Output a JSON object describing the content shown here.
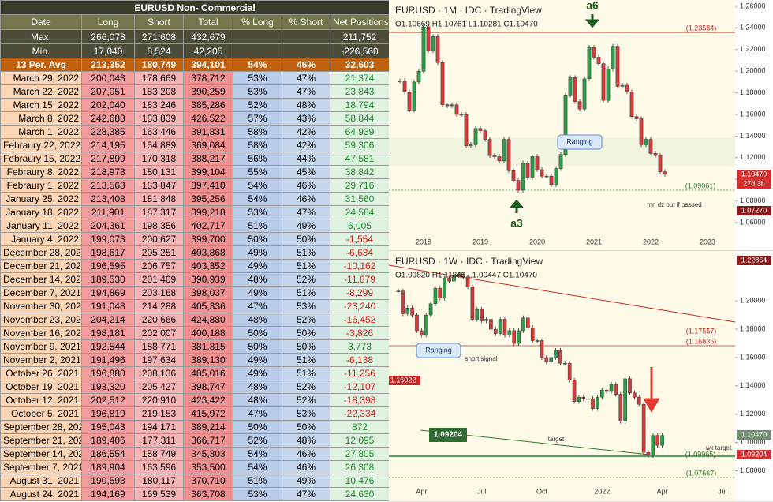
{
  "table": {
    "title": "EURUSD Non- Commercial",
    "header": [
      "Date",
      "Long",
      "Short",
      "Total",
      "% Long",
      "% Short",
      "Net Positions"
    ],
    "max": {
      "label": "Max.",
      "long": "266,078",
      "short": "271,608",
      "total": "432,679",
      "net": "211,752"
    },
    "min": {
      "label": "Min.",
      "long": "17,040",
      "short": "8,524",
      "total": "42,205",
      "net": "-226,560"
    },
    "avg": [
      "13 Per. Avg",
      "213,352",
      "180,749",
      "394,101",
      "54%",
      "46%",
      "32,603"
    ],
    "rows": [
      [
        "March 29, 2022",
        "200,043",
        "178,669",
        "378,712",
        "53%",
        "47%",
        "21,374"
      ],
      [
        "March 22, 2022",
        "207,051",
        "183,208",
        "390,259",
        "53%",
        "47%",
        "23,843"
      ],
      [
        "March 15, 2022",
        "202,040",
        "183,246",
        "385,286",
        "52%",
        "48%",
        "18,794"
      ],
      [
        "March 8, 2022",
        "242,683",
        "183,839",
        "426,522",
        "57%",
        "43%",
        "58,844"
      ],
      [
        "March 1, 2022",
        "228,385",
        "163,446",
        "391,831",
        "58%",
        "42%",
        "64,939"
      ],
      [
        "Febraury 22, 2022",
        "214,195",
        "154,889",
        "369,084",
        "58%",
        "42%",
        "59,306"
      ],
      [
        "Febraury 15, 2022",
        "217,899",
        "170,318",
        "388,217",
        "56%",
        "44%",
        "47,581"
      ],
      [
        "Febraury 8, 2022",
        "218,973",
        "180,131",
        "399,104",
        "55%",
        "45%",
        "38,842"
      ],
      [
        "Febraury 1, 2022",
        "213,563",
        "183,847",
        "397,410",
        "54%",
        "46%",
        "29,716"
      ],
      [
        "January 25, 2022",
        "213,408",
        "181,848",
        "395,256",
        "54%",
        "46%",
        "31,560"
      ],
      [
        "January 18, 2022",
        "211,901",
        "187,317",
        "399,218",
        "53%",
        "47%",
        "24,584"
      ],
      [
        "January 11, 2022",
        "204,361",
        "198,356",
        "402,717",
        "51%",
        "49%",
        "6,005"
      ],
      [
        "January 4, 2022",
        "199,073",
        "200,627",
        "399,700",
        "50%",
        "50%",
        "-1,554"
      ],
      [
        "December 28, 2021",
        "198,617",
        "205,251",
        "403,868",
        "49%",
        "51%",
        "-6,634"
      ],
      [
        "December 21, 2021",
        "196,595",
        "206,757",
        "403,352",
        "49%",
        "51%",
        "-10,162"
      ],
      [
        "December 14, 2021",
        "189,530",
        "201,409",
        "390,939",
        "48%",
        "52%",
        "-11,879"
      ],
      [
        "December 7, 2021",
        "194,869",
        "203,168",
        "398,037",
        "49%",
        "51%",
        "-8,299"
      ],
      [
        "November 30, 2021",
        "191,048",
        "214,288",
        "405,336",
        "47%",
        "53%",
        "-23,240"
      ],
      [
        "November 23, 2021",
        "204,214",
        "220,666",
        "424,880",
        "48%",
        "52%",
        "-16,452"
      ],
      [
        "November 16, 2021",
        "198,181",
        "202,007",
        "400,188",
        "50%",
        "50%",
        "-3,826"
      ],
      [
        "November 9, 2021",
        "192,544",
        "188,771",
        "381,315",
        "50%",
        "50%",
        "3,773"
      ],
      [
        "November 2, 2021",
        "191,496",
        "197,634",
        "389,130",
        "49%",
        "51%",
        "-6,138"
      ],
      [
        "October 26, 2021",
        "196,880",
        "208,136",
        "405,016",
        "49%",
        "51%",
        "-11,256"
      ],
      [
        "October 19, 2021",
        "193,320",
        "205,427",
        "398,747",
        "48%",
        "52%",
        "-12,107"
      ],
      [
        "October 12, 2021",
        "202,512",
        "220,910",
        "423,422",
        "48%",
        "52%",
        "-18,398"
      ],
      [
        "October 5, 2021",
        "196,819",
        "219,153",
        "415,972",
        "47%",
        "53%",
        "-22,334"
      ],
      [
        "September 28, 2021",
        "195,043",
        "194,171",
        "389,214",
        "50%",
        "50%",
        "872"
      ],
      [
        "September 21, 2021",
        "189,406",
        "177,311",
        "366,717",
        "52%",
        "48%",
        "12,095"
      ],
      [
        "September 14, 2021",
        "186,554",
        "158,749",
        "345,303",
        "54%",
        "46%",
        "27,805"
      ],
      [
        "September 7, 2021",
        "189,904",
        "163,596",
        "353,500",
        "54%",
        "46%",
        "26,308"
      ],
      [
        "August 31, 2021",
        "190,593",
        "180,117",
        "370,710",
        "51%",
        "49%",
        "10,476"
      ],
      [
        "August 24, 2021",
        "194,169",
        "169,539",
        "363,708",
        "53%",
        "47%",
        "24,630"
      ]
    ]
  },
  "charts": [
    {
      "type": "candlestick",
      "title": "EURUSD · 1M · IDC · TradingView",
      "ohlc": "O1.10669 H1.10761 L1.10281 C1.10470",
      "values": [
        1.191,
        1.181,
        1.164,
        1.19,
        1.2,
        1.241,
        1.219,
        1.232,
        1.208,
        1.169,
        1.168,
        1.169,
        1.16,
        1.16,
        1.131,
        1.132,
        1.147,
        1.145,
        1.137,
        1.122,
        1.121,
        1.117,
        1.137,
        1.108,
        1.099,
        1.09,
        1.115,
        1.102,
        1.121,
        1.109,
        1.103,
        1.103,
        1.095,
        1.11,
        1.123,
        1.178,
        1.194,
        1.172,
        1.165,
        1.193,
        1.222,
        1.213,
        1.207,
        1.173,
        1.202,
        1.223,
        1.186,
        1.187,
        1.181,
        1.158,
        1.156,
        1.132,
        1.137,
        1.124,
        1.122,
        1.107,
        1.1047
      ],
      "ylim": [
        1.0484,
        1.2658
      ],
      "yticks": [
        {
          "value": 1.06,
          "label": "1.06000"
        },
        {
          "value": 1.08,
          "label": "1.08000"
        },
        {
          "value": 1.1,
          "label": "1.10000"
        },
        {
          "value": 1.12,
          "label": "1.12000"
        },
        {
          "value": 1.14,
          "label": "1.14000"
        },
        {
          "value": 1.16,
          "label": "1.16000"
        },
        {
          "value": 1.18,
          "label": "1.18000"
        },
        {
          "value": 1.2,
          "label": "1.20000"
        },
        {
          "value": 1.22,
          "label": "1.22000"
        },
        {
          "value": 1.24,
          "label": "1.24000"
        },
        {
          "value": 1.26,
          "label": "1.26000"
        }
      ],
      "xticks": [
        {
          "value": 5,
          "label": "2018"
        },
        {
          "value": 17,
          "label": "2019"
        },
        {
          "value": 29,
          "label": "2020"
        },
        {
          "value": 41,
          "label": "2021"
        },
        {
          "value": 53,
          "label": "2022"
        },
        {
          "value": 65,
          "label": "2023"
        }
      ],
      "annotations": [
        "a6",
        "a3",
        "Ranging",
        "mn dz out if passed",
        "(1.23584)",
        "(1.09061)",
        "1.10470",
        "27d 3h",
        "1.07270"
      ]
    },
    {
      "type": "candlestick",
      "title": "EURUSD · 1W · IDC · TradingView",
      "ohlc": "O1.09820 H1.11849 L1.09447 C1.10470",
      "values": [
        1.207,
        1.191,
        1.195,
        1.19,
        1.179,
        1.176,
        1.19,
        1.198,
        1.209,
        1.202,
        1.216,
        1.214,
        1.218,
        1.219,
        1.217,
        1.21,
        1.187,
        1.194,
        1.186,
        1.187,
        1.18,
        1.177,
        1.187,
        1.176,
        1.179,
        1.17,
        1.179,
        1.188,
        1.181,
        1.172,
        1.172,
        1.16,
        1.157,
        1.16,
        1.165,
        1.156,
        1.156,
        1.144,
        1.129,
        1.132,
        1.131,
        1.131,
        1.124,
        1.132,
        1.137,
        1.136,
        1.141,
        1.134,
        1.115,
        1.145,
        1.135,
        1.132,
        1.127,
        1.093,
        1.091,
        1.105,
        1.098,
        1.105
      ],
      "ylim": [
        1.058,
        1.233
      ],
      "yticks": [
        {
          "value": 1.08,
          "label": "1.08000"
        },
        {
          "value": 1.1,
          "label": "1.10000"
        },
        {
          "value": 1.12,
          "label": "1.12000"
        },
        {
          "value": 1.14,
          "label": "1.14000"
        },
        {
          "value": 1.16,
          "label": "1.16000"
        },
        {
          "value": 1.18,
          "label": "1.18000"
        },
        {
          "value": 1.2,
          "label": "1.20000"
        }
      ],
      "xticks": [
        {
          "value": 5,
          "label": "Apr"
        },
        {
          "value": 18,
          "label": "Jul"
        },
        {
          "value": 31,
          "label": "Oct"
        },
        {
          "value": 44,
          "label": "2022"
        },
        {
          "value": 57,
          "label": "Apr"
        },
        {
          "value": 70,
          "label": "Jul"
        }
      ],
      "annotations": [
        "Ranging",
        "short signal",
        "1.16922",
        "1.09204",
        "target",
        "wk target",
        "(1.17557)",
        "(1.16835)",
        "(1.09965)",
        "(1.07667)",
        "1.22864",
        "1.10470",
        "1.09204"
      ]
    }
  ]
}
